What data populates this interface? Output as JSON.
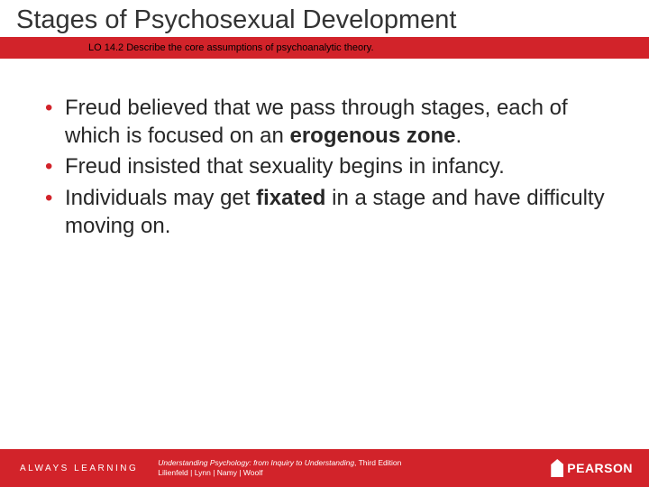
{
  "colors": {
    "brand_red": "#d2232a",
    "title_text": "#333333",
    "body_text": "#272727",
    "footer_text": "#ffffff",
    "background": "#ffffff"
  },
  "typography": {
    "title_fontsize": 29,
    "body_fontsize": 24,
    "lo_fontsize": 11,
    "footer_small_fontsize": 8.5,
    "always_fontsize": 10
  },
  "header": {
    "title": "Stages of Psychosexual Development",
    "learning_objective": "LO 14.2 Describe the core assumptions of psychoanalytic theory."
  },
  "bullets": [
    {
      "pre": "Freud believed that we pass through stages, each of which is focused on an ",
      "bold": "erogenous zone",
      "post": "."
    },
    {
      "pre": "Freud insisted that sexuality begins in infancy.",
      "bold": "",
      "post": ""
    },
    {
      "pre": "Individuals may get ",
      "bold": "fixated",
      "post": " in a stage and have difficulty moving on."
    }
  ],
  "footer": {
    "always_learning": "ALWAYS LEARNING",
    "book_title": "Understanding Psychology: from Inquiry to Understanding",
    "edition": ", Third Edition",
    "authors": "Lilienfeld | Lynn | Namy | Woolf",
    "publisher": "PEARSON"
  }
}
